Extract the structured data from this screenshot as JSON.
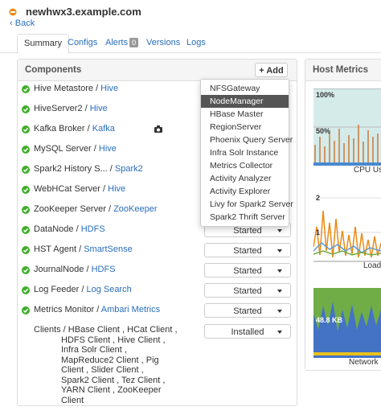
{
  "header": {
    "title": "newhwx3.example.com",
    "back": "Back"
  },
  "tabs": [
    {
      "label": "Summary"
    },
    {
      "label": "Configs"
    },
    {
      "label": "Alerts",
      "badge": "0"
    },
    {
      "label": "Versions"
    },
    {
      "label": "Logs"
    }
  ],
  "components": {
    "title": "Components",
    "add_button": "Add",
    "separator": "/",
    "rows": [
      {
        "name": "Hive Metastore",
        "service": "Hive"
      },
      {
        "name": "HiveServer2",
        "service": "Hive"
      },
      {
        "name": "Kafka Broker",
        "service": "Kafka"
      },
      {
        "name": "MySQL Server",
        "service": "Hive"
      },
      {
        "name": "Spark2 History S...",
        "service": "Spark2"
      },
      {
        "name": "WebHCat Server",
        "service": "Hive"
      },
      {
        "name": "ZooKeeper Server",
        "service": "ZooKeeper"
      },
      {
        "name": "DataNode",
        "service": "HDFS",
        "status": "Started"
      },
      {
        "name": "HST Agent",
        "service": "SmartSense",
        "status": "Started"
      },
      {
        "name": "JournalNode",
        "service": "HDFS",
        "status": "Started"
      },
      {
        "name": "Log Feeder",
        "service": "Log Search",
        "status": "Started"
      },
      {
        "name": "Metrics Monitor",
        "service": "Ambari Metrics",
        "status": "Started"
      }
    ],
    "clients": {
      "lines": [
        "Clients / HBase Client , HCat Client ,",
        "HDFS Client , Hive Client ,",
        "Infra Solr Client ,",
        "MapReduce2 Client , Pig",
        "Client , Slider Client ,",
        "Spark2 Client , Tez Client ,",
        "YARN Client , ZooKeeper",
        "Client"
      ],
      "status": "Installed"
    }
  },
  "add_menu": {
    "items": [
      "NFSGateway",
      "NodeManager",
      "HBase Master",
      "RegionServer",
      "Phoenix Query Server",
      "Infra Solr Instance",
      "Metrics Collector",
      "Activity Analyzer",
      "Activity Explorer",
      "Livy for Spark2 Server",
      "Spark2 Thrift Server"
    ]
  },
  "host_metrics": {
    "title": "Host Metrics",
    "charts": [
      {
        "title": "CPU Usa",
        "axis_labels": [
          "100%",
          "50%"
        ]
      },
      {
        "title": "Load",
        "axis_labels": [
          "2",
          "1"
        ]
      },
      {
        "title": "Network U",
        "axis_labels": [
          "48.8 KB"
        ]
      }
    ]
  }
}
